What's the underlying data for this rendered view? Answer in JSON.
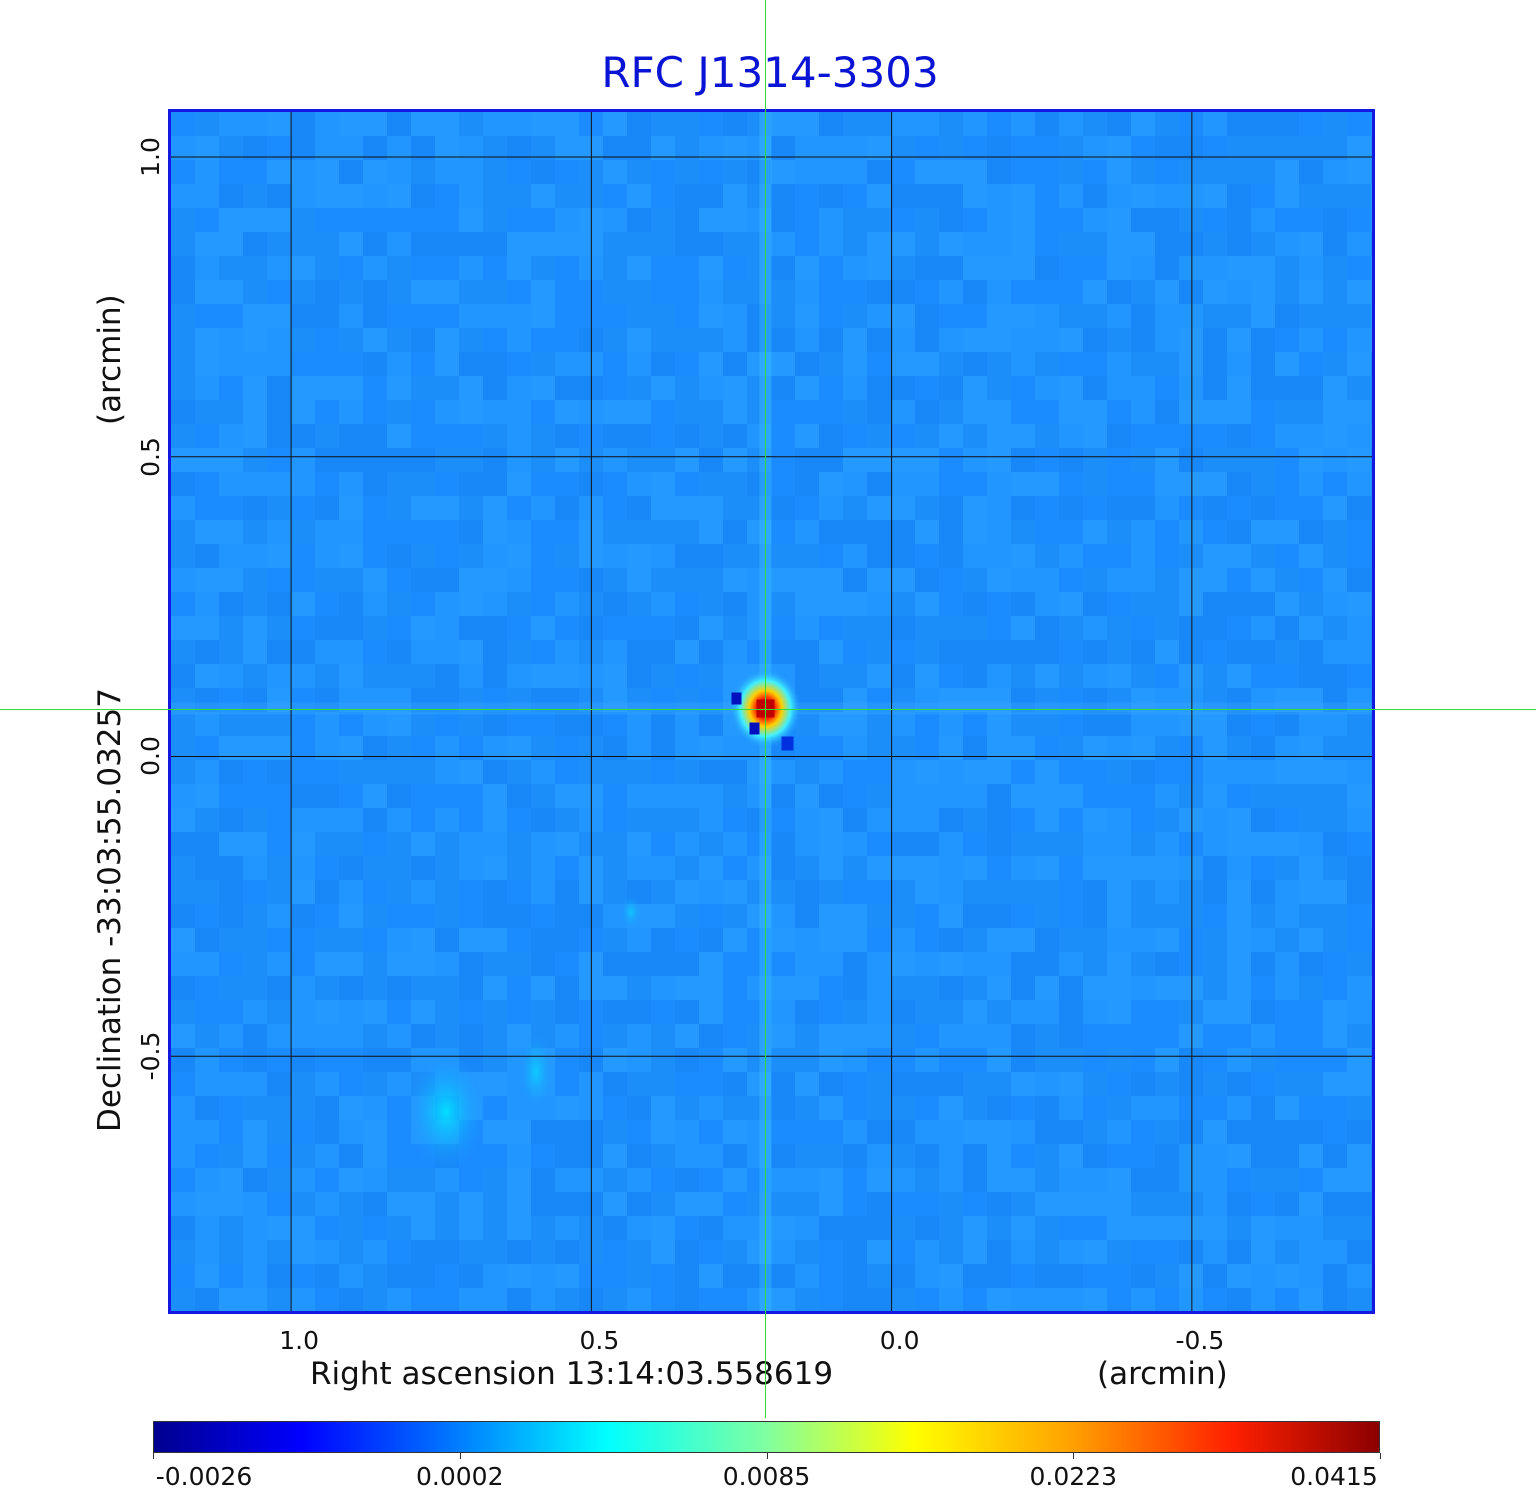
{
  "chart_data": {
    "type": "heatmap",
    "title": "RFC J1314-3303",
    "xlabel": "Right ascension  13:14:03.558619",
    "xlabel_unit": "(arcmin)",
    "ylabel": "Declination  -33:03:55.03257",
    "ylabel_unit": "(arcmin)",
    "x_ticks": [
      "1.0",
      "0.5",
      "0.0",
      "-0.5"
    ],
    "x_tick_values": [
      1.0,
      0.5,
      0.0,
      -0.5
    ],
    "y_ticks": [
      "1.0",
      "0.5",
      "0.0",
      "-0.5"
    ],
    "y_tick_values": [
      1.0,
      0.5,
      0.0,
      -0.5
    ],
    "xlim": [
      1.205,
      -0.805
    ],
    "ylim": [
      -0.93,
      1.08
    ],
    "grid": true,
    "colormap": "jet",
    "colorbar_ticks": [
      "-0.0026",
      "0.0002",
      "0.0085",
      "0.0223",
      "0.0415"
    ],
    "peak": {
      "x": 0.21,
      "y": 0.08,
      "value": 0.0415
    },
    "crosshair": {
      "x": 0.21,
      "y": 0.08
    },
    "colors": {
      "title": "#0a14d4",
      "frame": "#1418e0",
      "background": "#1e90ff",
      "crosshair": "#33dd33"
    }
  }
}
